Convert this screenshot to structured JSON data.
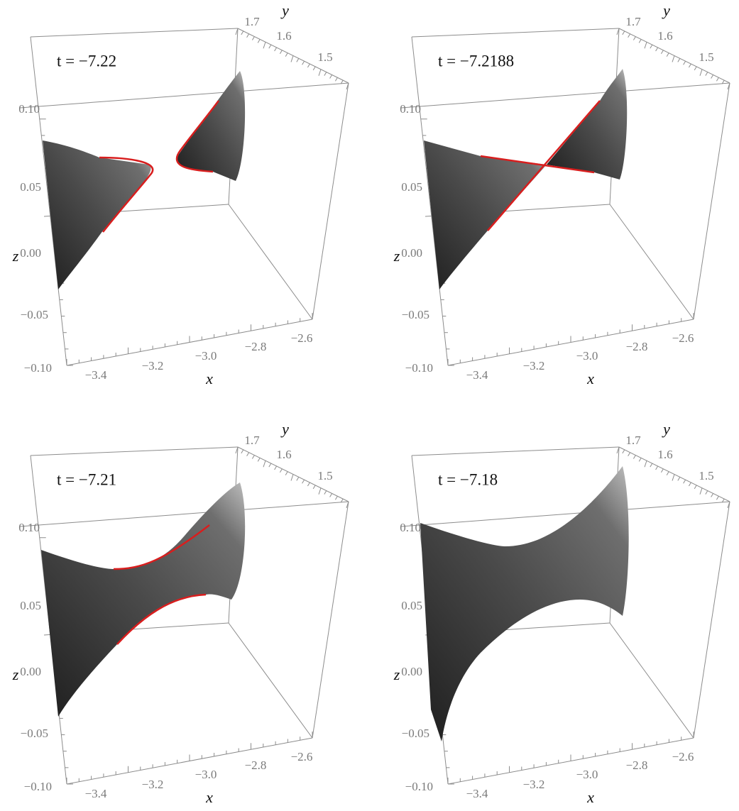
{
  "panels": [
    {
      "t_label": "t = −7.22",
      "x_label": "x",
      "y_label": "y",
      "z_label": "z",
      "x_ticks": [
        "−3.4",
        "−3.2",
        "−3.0",
        "−2.8",
        "−2.6"
      ],
      "y_ticks": [
        "1.7",
        "1.6",
        "1.5"
      ],
      "z_ticks": [
        "0.10",
        "0.05",
        "0.00",
        "−0.05",
        "−0.10"
      ]
    },
    {
      "t_label": "t = −7.2188",
      "x_label": "x",
      "y_label": "y",
      "z_label": "z",
      "x_ticks": [
        "−3.4",
        "−3.2",
        "−3.0",
        "−2.8",
        "−2.6"
      ],
      "y_ticks": [
        "1.7",
        "1.6",
        "1.5"
      ],
      "z_ticks": [
        "0.10",
        "0.05",
        "0.00",
        "−0.05",
        "−0.10"
      ]
    },
    {
      "t_label": "t = −7.21",
      "x_label": "x",
      "y_label": "y",
      "z_label": "z",
      "x_ticks": [
        "−3.4",
        "−3.2",
        "−3.0",
        "−2.8",
        "−2.6"
      ],
      "y_ticks": [
        "1.7",
        "1.6",
        "1.5"
      ],
      "z_ticks": [
        "0.10",
        "0.05",
        "0.00",
        "−0.05",
        "−0.10"
      ]
    },
    {
      "t_label": "t = −7.18",
      "x_label": "x",
      "y_label": "y",
      "z_label": "z",
      "x_ticks": [
        "−3.4",
        "−3.2",
        "−3.0",
        "−2.8",
        "−2.6"
      ],
      "y_ticks": [
        "1.7",
        "1.6",
        "1.5"
      ],
      "z_ticks": [
        "0.10",
        "0.05",
        "0.00",
        "−0.05",
        "−0.10"
      ]
    }
  ]
}
